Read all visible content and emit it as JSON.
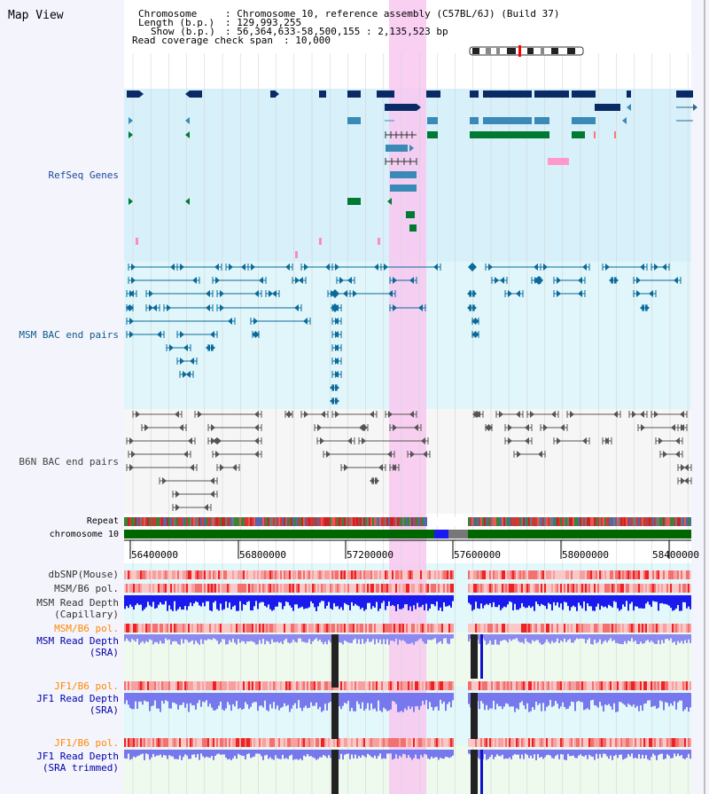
{
  "title": "Map View",
  "info": {
    "chromosome_key": "Chromosome",
    "chromosome_val": "Chromosome 10, reference assembly (C57BL/6J) (Build 37)",
    "length_key": "Length (b.p.)",
    "length_val": "129,993,255",
    "show_key": "Show (b.p.)",
    "show_val": "56,364,633-58,500,155 : 2,135,523 bp",
    "coverage_key": "Read coverage check span",
    "coverage_val": "10,000"
  },
  "tracks": {
    "refseq": "RefSeq Genes",
    "msm_bac": "MSM BAC end pairs",
    "b6n_bac": "B6N BAC end pairs",
    "repeat": "Repeat",
    "chromosome": "chromosome 10",
    "dbsnp": "dbSNP(Mouse)",
    "msm_b6_pol_1": "MSM/B6 pol.",
    "msm_depth_cap_1": "MSM Read Depth",
    "msm_depth_cap_2": "(Capillary)",
    "msm_b6_pol_2": "MSM/B6 pol.",
    "msm_depth_sra_1": "MSM Read Depth",
    "msm_depth_sra_2": "(SRA)",
    "jf1_b6_pol_1": "JF1/B6 pol.",
    "jf1_depth_sra_1": "JF1 Read Depth",
    "jf1_depth_sra_2": "(SRA)",
    "jf1_b6_pol_2": "JF1/B6 pol.",
    "jf1_depth_trim_1": "JF1 Read Depth",
    "jf1_depth_trim_2": "(SRA trimmed)"
  },
  "ruler": {
    "ticks": [
      "56400000",
      "56800000",
      "57200000",
      "57600000",
      "58000000",
      "58400000"
    ]
  },
  "colors": {
    "refseq_label": "#1a4a9a",
    "msm_label": "#0a5a8a",
    "b6n_label": "#444444",
    "pol_label": "#ff8800",
    "depth_label": "#0000aa",
    "highlight": "#f8c8f0",
    "refseq_bg": "#d8f0fa",
    "msm_bg": "#e0f6fa",
    "chromosome_bar": "#006600"
  }
}
